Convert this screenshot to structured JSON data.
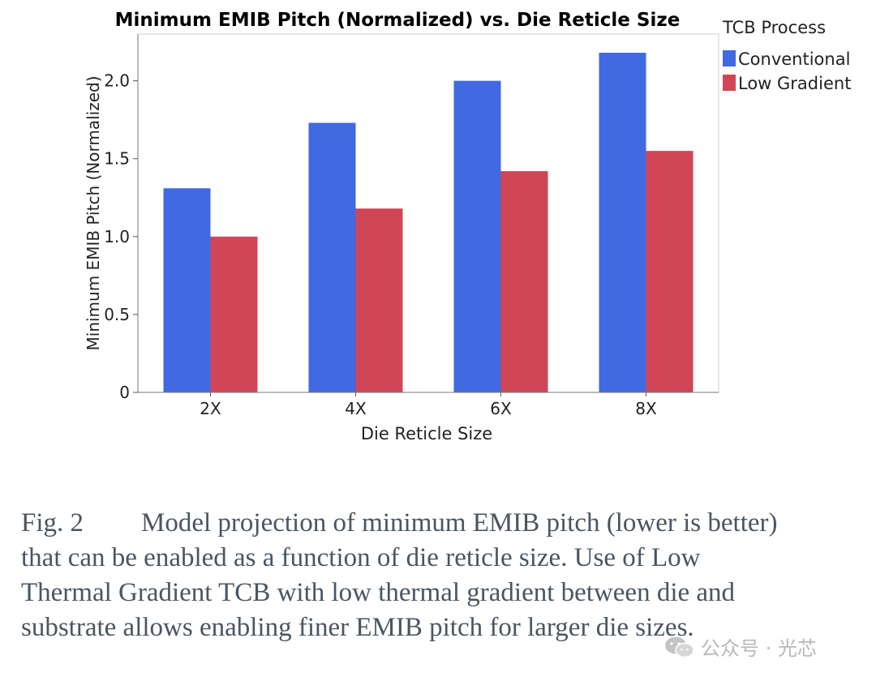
{
  "chart_data": {
    "type": "bar",
    "title": "Minimum EMIB Pitch (Normalized) vs. Die Reticle Size",
    "xlabel": "Die Reticle Size",
    "ylabel": "Minimum EMIB Pitch (Normalized)",
    "categories": [
      "2X",
      "4X",
      "6X",
      "8X"
    ],
    "series": [
      {
        "name": "Conventional",
        "color": "#4169E1",
        "values": [
          1.31,
          1.73,
          2.0,
          2.18
        ]
      },
      {
        "name": "Low Gradient",
        "color": "#D14656",
        "values": [
          1.0,
          1.18,
          1.42,
          1.55
        ]
      }
    ],
    "ylim": [
      0,
      2.3
    ],
    "yticks": [
      0,
      0.5,
      1.0,
      1.5,
      2.0
    ],
    "ytick_labels": [
      "0",
      "0.5",
      "1.0",
      "1.5",
      "2.0"
    ],
    "legend_title": "TCB Process",
    "legend_position": "right",
    "grid": false
  },
  "caption": {
    "fig_label": "Fig.  2",
    "line1": "Model projection of minimum EMIB pitch (lower is better)",
    "line2": "that can be enabled as a function of die reticle size. Use of Low",
    "line3": "Thermal Gradient TCB with low thermal gradient between die and",
    "line4": "substrate allows enabling finer EMIB pitch for larger die sizes."
  },
  "watermark": {
    "text": "公众号 · 光芯",
    "icon": "wechat-icon"
  }
}
